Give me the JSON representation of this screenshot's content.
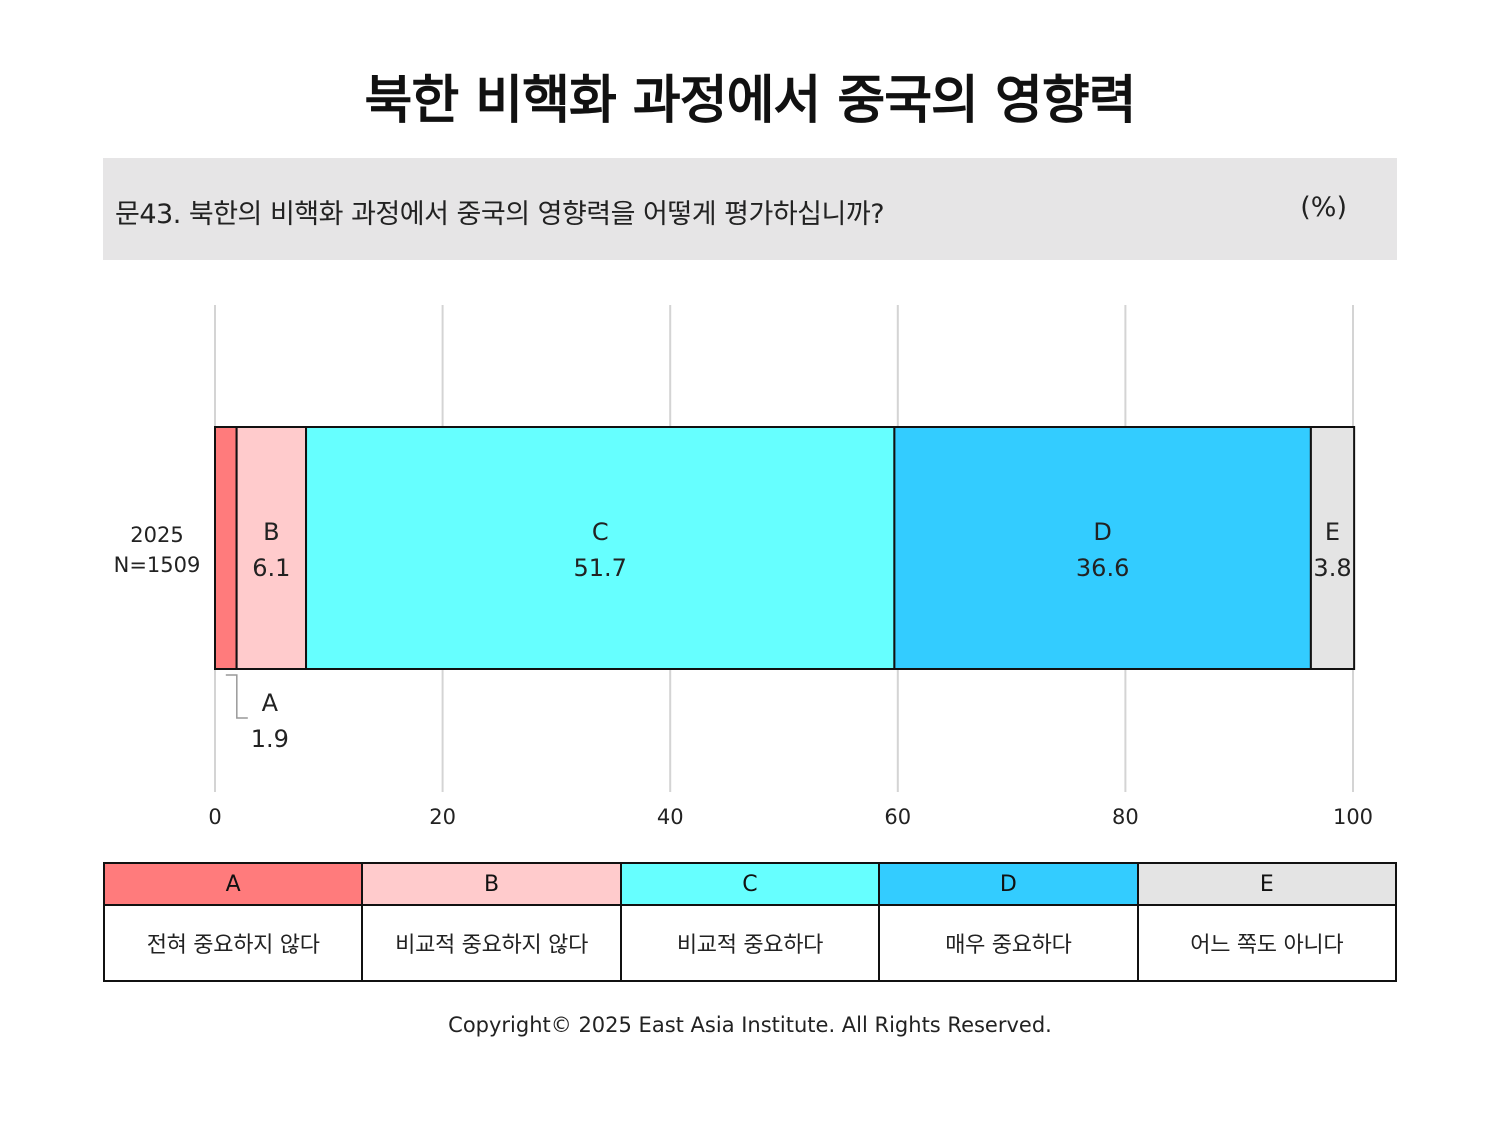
{
  "title": "북한 비핵화 과정에서 중국의 영향력",
  "question": "문43. 북한의 비핵화 과정에서 중국의 영향력을 어떻게 평가하십니까?",
  "unit": "(%)",
  "copyright": "Copyright© 2025 East Asia Institute. All Rights Reserved.",
  "chart_data": {
    "type": "bar",
    "orientation": "horizontal",
    "stacked": true,
    "categories": [
      "2025",
      "N=1509"
    ],
    "row_label": [
      "2025",
      "N=1509"
    ],
    "xlim": [
      0,
      100
    ],
    "xticks": [
      0,
      20,
      40,
      60,
      80,
      100
    ],
    "grid": true,
    "series": [
      {
        "name": "A",
        "value": 1.9,
        "color": "#ff7b7c"
      },
      {
        "name": "B",
        "value": 6.1,
        "color": "#ffcbcc"
      },
      {
        "name": "C",
        "value": 51.7,
        "color": "#66ffff"
      },
      {
        "name": "D",
        "value": 36.6,
        "color": "#33ccff"
      },
      {
        "name": "E",
        "value": 3.8,
        "color": "#e4e4e4"
      }
    ]
  },
  "legend": [
    {
      "code": "A",
      "label": "전혀 중요하지 않다",
      "color": "#ff7b7c"
    },
    {
      "code": "B",
      "label": "비교적 중요하지 않다",
      "color": "#ffcbcc"
    },
    {
      "code": "C",
      "label": "비교적 중요하다",
      "color": "#66ffff"
    },
    {
      "code": "D",
      "label": "매우 중요하다",
      "color": "#33ccff"
    },
    {
      "code": "E",
      "label": "어느 쪽도 아니다",
      "color": "#e4e4e4"
    }
  ]
}
